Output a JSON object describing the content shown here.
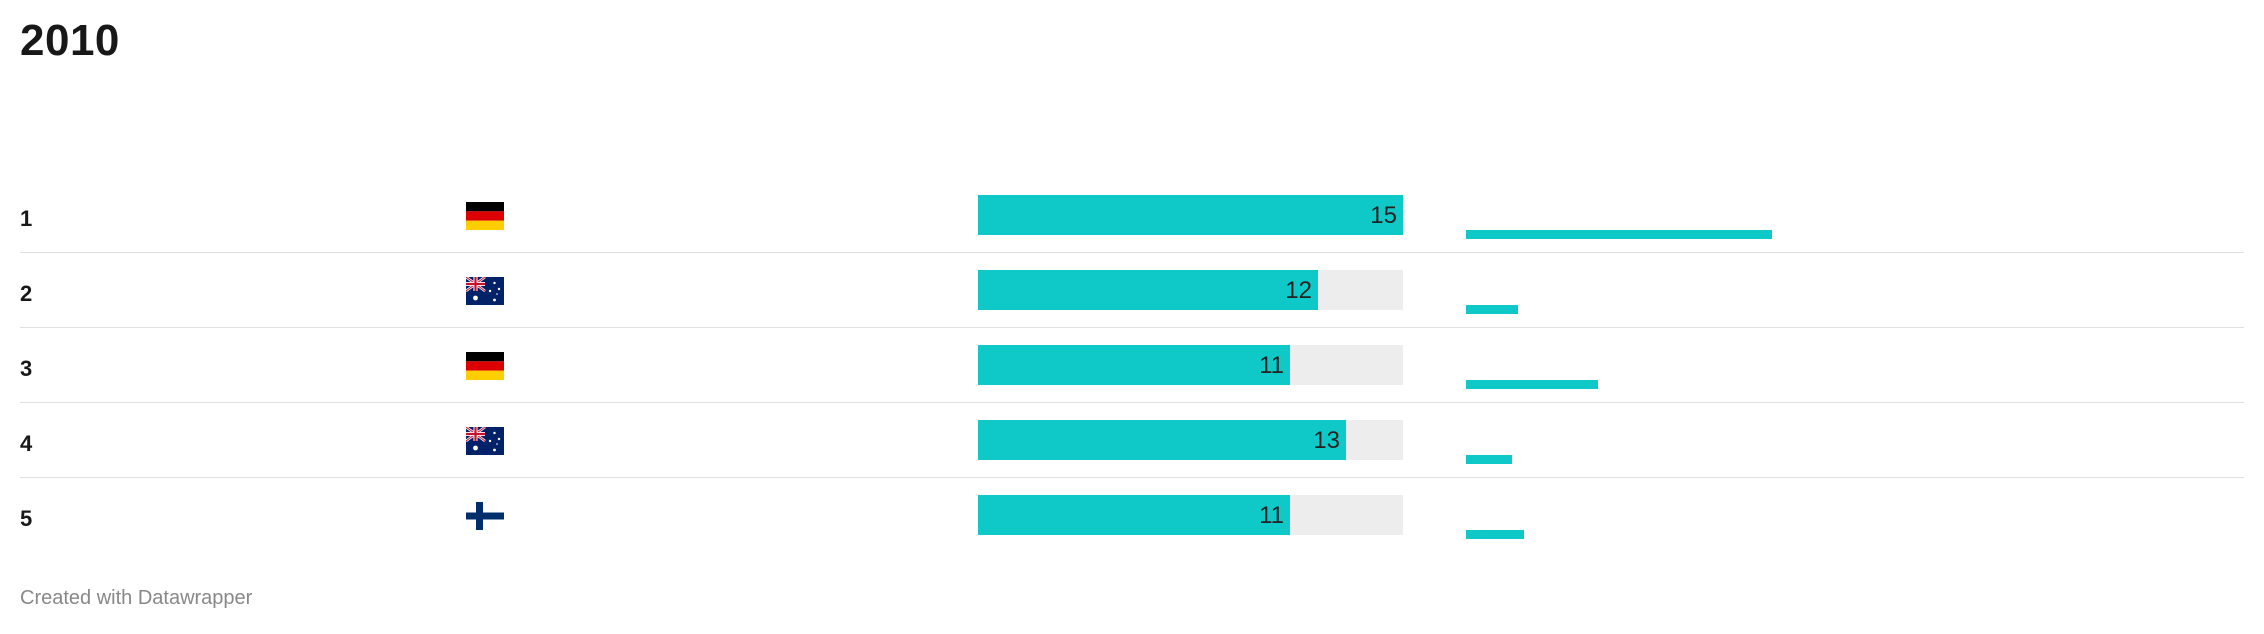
{
  "title": "2010",
  "footer": "Created with Datawrapper",
  "colors": {
    "bar": "#0fc9c9",
    "track": "#ededed",
    "separator": "#e1e1e1"
  },
  "chart_data": {
    "type": "bar",
    "title": "2010",
    "bar_max": 15,
    "rows": [
      {
        "rank": "1",
        "country": "Germany",
        "flag": "germany-flag",
        "value": 15,
        "spark": 1.0
      },
      {
        "rank": "2",
        "country": "Australia",
        "flag": "australia-flag",
        "value": 12,
        "spark": 0.17
      },
      {
        "rank": "3",
        "country": "Germany",
        "flag": "germany-flag",
        "value": 11,
        "spark": 0.43
      },
      {
        "rank": "4",
        "country": "Australia",
        "flag": "australia-flag",
        "value": 13,
        "spark": 0.15
      },
      {
        "rank": "5",
        "country": "Finland",
        "flag": "finland-flag",
        "value": 11,
        "spark": 0.19
      }
    ]
  }
}
